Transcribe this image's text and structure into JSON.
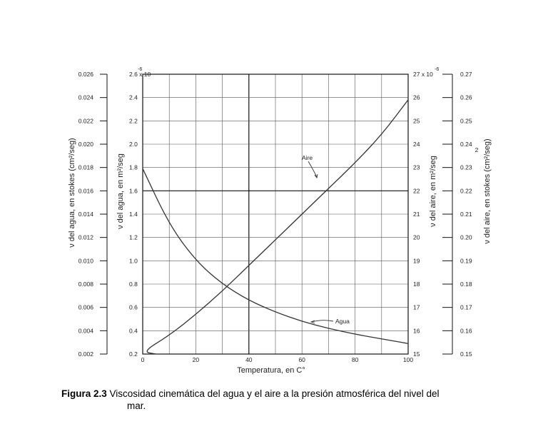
{
  "chart_data": {
    "type": "line",
    "x": [
      0,
      10,
      20,
      30,
      40,
      50,
      60,
      70,
      80,
      90,
      100
    ],
    "xticks": [
      0,
      20,
      40,
      60,
      80,
      100
    ],
    "xlim": [
      0,
      100
    ],
    "xlabel": "Temperatura, en  C°",
    "axes": {
      "water_stokes": {
        "ticks": [
          "0.026",
          "0.024",
          "0.022",
          "0.020",
          "0.018",
          "0.016",
          "0.014",
          "0.012",
          "0.010",
          "0.008",
          "0.006",
          "0.004",
          "0.002"
        ],
        "label": "ν del agua, en stokes (cm²/seg)"
      },
      "water_m2": {
        "ticks": [
          "2.6 x 10",
          "2.4",
          "2.2",
          "2.0",
          "1.8",
          "1.6",
          "1.4",
          "1.2",
          "1.0",
          "0.8",
          "0.6",
          "0.4",
          "0.2"
        ],
        "exponent": "-6",
        "label": "ν del agua, en m²/seg",
        "ylim": [
          0.2,
          2.6
        ]
      },
      "air_m2": {
        "ticks": [
          "27 x 10",
          "26",
          "25",
          "24",
          "23",
          "22",
          "21",
          "20",
          "19",
          "18",
          "17",
          "16",
          "15"
        ],
        "exponent": "-6",
        "label": "ν del aire, en m²/seg",
        "ylim": [
          15,
          27
        ]
      },
      "air_stokes": {
        "ticks": [
          "0.27",
          "0.26",
          "0.25",
          "0.24",
          "0.23",
          "0.22",
          "0.21",
          "0.20",
          "0.19",
          "0.18",
          "0.17",
          "0.16",
          "0.15"
        ],
        "label": "ν del aire, en stokes (cm²/seg)",
        "label_exponent": "2"
      }
    },
    "series": [
      {
        "name": "Agua",
        "axis": "water_m2",
        "values": [
          1.79,
          1.31,
          1.0,
          0.8,
          0.66,
          0.56,
          0.48,
          0.42,
          0.37,
          0.33,
          0.29
        ]
      },
      {
        "name": "Aire",
        "axis": "air_m2",
        "values": [
          15.1,
          15.8,
          16.7,
          17.7,
          18.8,
          19.9,
          21.0,
          22.1,
          23.2,
          24.4,
          25.9
        ]
      }
    ],
    "grid": true
  },
  "caption": {
    "figure_label": "Figura 2.3",
    "text": " Viscosidad cinemática del agua y el aire a la presión atmosférica del nivel del",
    "continuation": "mar."
  },
  "colors": {
    "line": "#333333",
    "grid": "#555555",
    "text": "#222222"
  }
}
